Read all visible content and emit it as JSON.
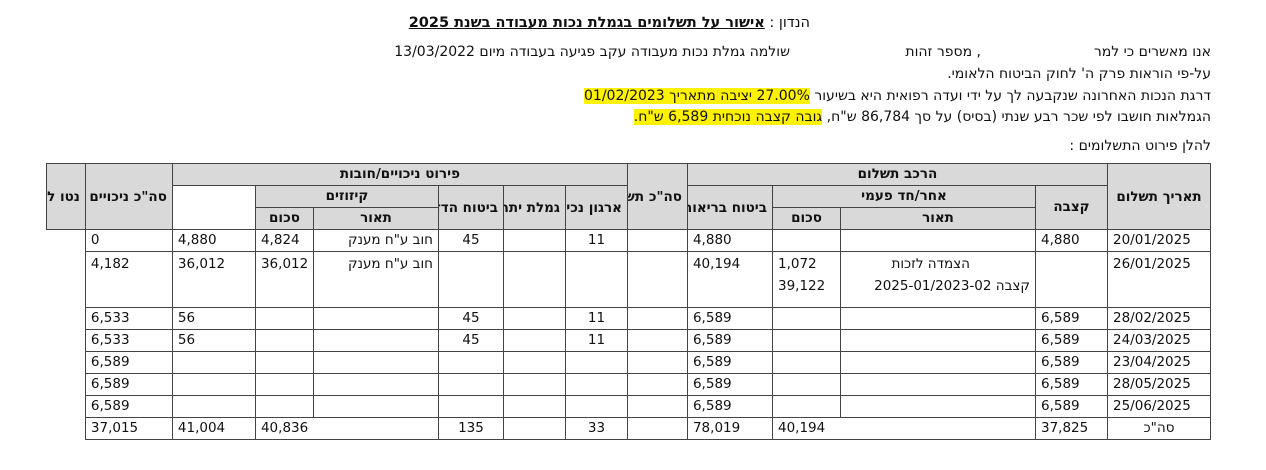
{
  "header": {
    "subject_prefix": "הנדון : ",
    "subject_title": "אישור על תשלומים בגמלת נכות מעבודה בשנת 2025"
  },
  "letter": {
    "line1_a": "אנו מאשרים כי למר",
    "line1_b": ", מספר זהות",
    "line1_c": "שולמה גמלת נכות מעבודה עקב פגיעה בעבודה מיום 13/03/2022",
    "line2": "על-פי הוראות פרק ה' לחוק הביטוח הלאומי.",
    "line3_a": "דרגת הנכות האחרונה שנקבעה לך על ידי ועדה רפואית היא בשיעור ",
    "line3_b": "27.00% יציבה מתאריך 01/02/2023",
    "line4_a": "הגמלאות חושבו לפי שכר רבע שנתי (בסיס) על סך 86,784 ש\"ח, ",
    "line4_b": "גובה קצבה נוכחית 6,589 ש\"ח.",
    "line5": "להלן פירוט התשלומים :"
  },
  "table": {
    "headers": {
      "date": "תאריך תשלום",
      "allowance": "קצבה",
      "payment_breakdown": "הרכב תשלום",
      "other_onetime": "אחר/חד פעמי",
      "description": "תאור",
      "amount": "סכום",
      "total_gross": "סה\"כ תשלום ברוטו",
      "deductions_breakdown": "פירוט ניכויים/חובות",
      "health_insurance": "ביטוח בריאות",
      "disabled_org": "ארגון נכים",
      "excess_pension": "גמלת יתר",
      "mutual_insurance": "ביטוח הדדי",
      "offsets": "קיזוזים",
      "offset_description": "תאור",
      "offset_amount": "סכום",
      "total_deductions": "סה\"כ ניכויים",
      "net": "נטו לתשלום"
    },
    "rows": [
      {
        "date": "20/01/2025",
        "allowance": "4,880",
        "other_desc": "",
        "other_amount": "",
        "gross": "4,880",
        "health": "",
        "org": "11",
        "excess": "",
        "mutual": "45",
        "offset_desc": "חוב ע\"ח מענק",
        "offset_amount": "4,824",
        "total_ded": "4,880",
        "net": "0"
      },
      {
        "date": "26/01/2025",
        "allowance": "",
        "other_desc": "הצמדה לזכות",
        "other_desc2": "קצבה 2025-01/2023-02",
        "other_amount": "1,072",
        "other_amount2": "39,122",
        "gross": "40,194",
        "health": "",
        "org": "",
        "excess": "",
        "mutual": "",
        "offset_desc": "חוב ע\"ח מענק",
        "offset_amount": "36,012",
        "total_ded": "36,012",
        "net": "4,182"
      },
      {
        "date": "28/02/2025",
        "allowance": "6,589",
        "other_desc": "",
        "other_amount": "",
        "gross": "6,589",
        "health": "",
        "org": "11",
        "excess": "",
        "mutual": "45",
        "offset_desc": "",
        "offset_amount": "",
        "total_ded": "56",
        "net": "6,533"
      },
      {
        "date": "24/03/2025",
        "allowance": "6,589",
        "other_desc": "",
        "other_amount": "",
        "gross": "6,589",
        "health": "",
        "org": "11",
        "excess": "",
        "mutual": "45",
        "offset_desc": "",
        "offset_amount": "",
        "total_ded": "56",
        "net": "6,533"
      },
      {
        "date": "23/04/2025",
        "allowance": "6,589",
        "other_desc": "",
        "other_amount": "",
        "gross": "6,589",
        "health": "",
        "org": "",
        "excess": "",
        "mutual": "",
        "offset_desc": "",
        "offset_amount": "",
        "total_ded": "",
        "net": "6,589"
      },
      {
        "date": "28/05/2025",
        "allowance": "6,589",
        "other_desc": "",
        "other_amount": "",
        "gross": "6,589",
        "health": "",
        "org": "",
        "excess": "",
        "mutual": "",
        "offset_desc": "",
        "offset_amount": "",
        "total_ded": "",
        "net": "6,589"
      },
      {
        "date": "25/06/2025",
        "allowance": "6,589",
        "other_desc": "",
        "other_amount": "",
        "gross": "6,589",
        "health": "",
        "org": "",
        "excess": "",
        "mutual": "",
        "offset_desc": "",
        "offset_amount": "",
        "total_ded": "",
        "net": "6,589"
      }
    ],
    "totals": {
      "label": "סה\"כ",
      "allowance": "37,825",
      "other_amount": "40,194",
      "gross": "78,019",
      "health": "",
      "org": "33",
      "excess": "",
      "mutual": "135",
      "offset_amount": "40,836",
      "total_ded": "41,004",
      "net": "37,015"
    }
  }
}
